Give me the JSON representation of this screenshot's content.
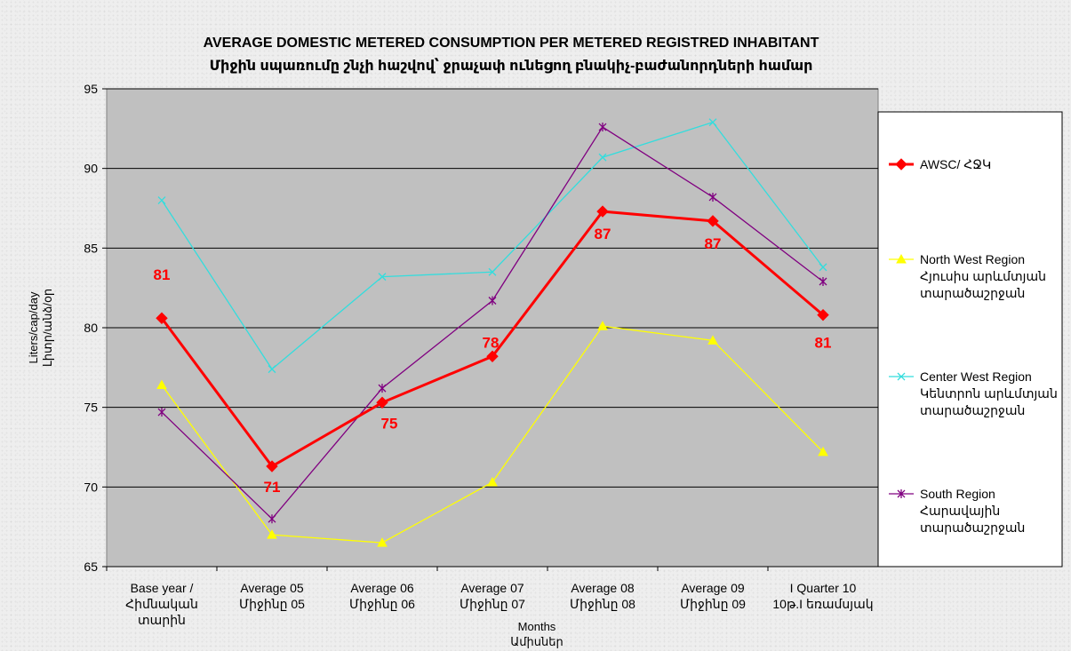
{
  "chart_data": {
    "type": "line",
    "title": "AVERAGE DOMESTIC METERED CONSUMPTION  PER METERED  REGISTRED INHABITANT",
    "subtitle": "Միջին սպառումը շնչի հաշվով՝ ջրաչափ ունեցող բնակիչ-բաժանորդների համար",
    "xlabel": [
      "Months",
      "Ամիսներ"
    ],
    "ylabel": [
      "Liters/cap/day",
      "Լիտր/անձ/օր"
    ],
    "ylim": [
      65,
      95
    ],
    "yticks": [
      "65",
      "70",
      "75",
      "80",
      "85",
      "90",
      "95"
    ],
    "categories": [
      [
        "Base year /",
        "Հիմնական",
        "տարին"
      ],
      [
        "Average 05",
        "Միջինը 05"
      ],
      [
        "Average 06",
        "Միջինը 06"
      ],
      [
        "Average 07",
        "Միջինը 07"
      ],
      [
        "Average 08",
        "Միջինը 08"
      ],
      [
        "Average 09",
        "Միջինը 09"
      ],
      [
        "I Quarter 10",
        "10թ.I եռամսյակ"
      ]
    ],
    "grid": true,
    "legend_position": "right",
    "series": [
      {
        "name": [
          "AWSC/ ՀՋԿ"
        ],
        "color": "#ff0000",
        "marker": "diamond",
        "values": [
          80.6,
          71.3,
          75.3,
          78.2,
          87.3,
          86.7,
          80.8
        ],
        "data_labels": [
          "81",
          "71",
          "75",
          "78",
          "87",
          "87",
          "81"
        ]
      },
      {
        "name": [
          "North West Region",
          "Հյուսիս արևմտյան",
          "տարածաշրջան"
        ],
        "color": "#ffff00",
        "marker": "triangle",
        "values": [
          76.4,
          67.0,
          66.5,
          70.3,
          80.1,
          79.2,
          72.2
        ]
      },
      {
        "name": [
          "Center West Region",
          "Կենտրոն արևմտյան",
          "տարածաշրջան"
        ],
        "color": "#33dddd",
        "marker": "x",
        "values": [
          88.0,
          77.4,
          83.2,
          83.5,
          90.7,
          92.9,
          83.8
        ]
      },
      {
        "name": [
          "South Region",
          "Հարավային",
          "տարածաշրջան"
        ],
        "color": "#800080",
        "marker": "star",
        "values": [
          74.7,
          68.0,
          76.2,
          81.7,
          92.6,
          88.2,
          82.9
        ]
      }
    ]
  }
}
